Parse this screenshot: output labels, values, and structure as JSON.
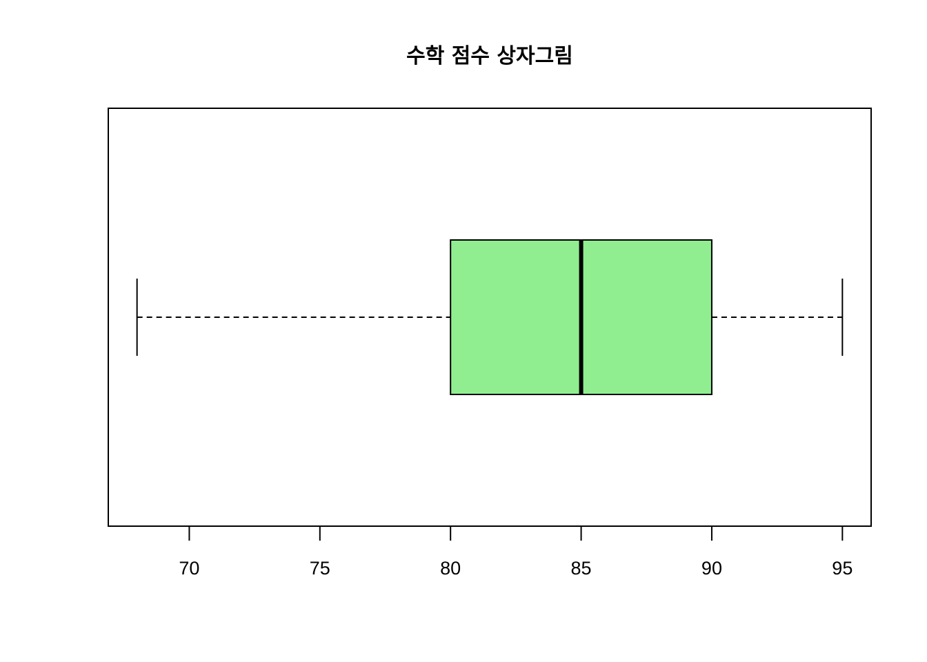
{
  "chart_data": {
    "type": "boxplot",
    "orientation": "horizontal",
    "title": "수학 점수 상자그림",
    "xlabel": "",
    "ylabel": "",
    "xlim": [
      66.9,
      96.1
    ],
    "ticks": [
      70,
      75,
      80,
      85,
      90,
      95
    ],
    "tick_labels": [
      "70",
      "75",
      "80",
      "85",
      "90",
      "95"
    ],
    "box": {
      "whisker_low": 68,
      "q1": 80,
      "median": 85,
      "q3": 90,
      "whisker_high": 95
    },
    "colors": {
      "box_fill": "#90EE90",
      "stroke": "#000000"
    },
    "grid": false
  }
}
